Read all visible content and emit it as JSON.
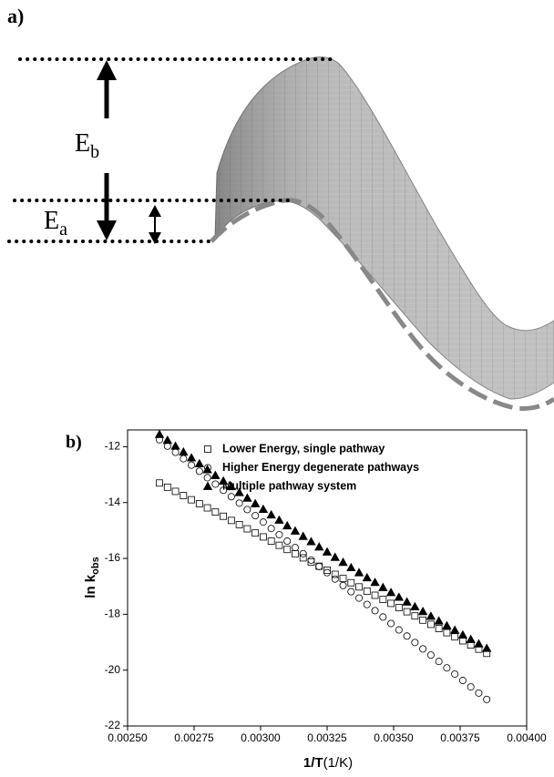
{
  "panel_a": {
    "label": "a)",
    "eb": {
      "main": "E",
      "sub": "b"
    },
    "ea": {
      "main": "E",
      "sub": "a"
    }
  },
  "panel_b_label": "b)",
  "chart_data": {
    "type": "scatter",
    "xlabel": "1/T",
    "xlabel_unit": "(1/K)",
    "ylabel": "ln k",
    "ylabel_sub": "obs",
    "xlim": [
      0.0025,
      0.004
    ],
    "xticks": [
      {
        "value": 0.0025,
        "label": "0.00250"
      },
      {
        "value": 0.00275,
        "label": "0.00275"
      },
      {
        "value": 0.003,
        "label": "0.00300"
      },
      {
        "value": 0.00325,
        "label": "0.00325"
      },
      {
        "value": 0.0035,
        "label": "0.00350"
      },
      {
        "value": 0.00375,
        "label": "0.00375"
      },
      {
        "value": 0.004,
        "label": "0.00400"
      }
    ],
    "ylim": [
      -22,
      -11.4
    ],
    "yticks": [
      -22,
      -20,
      -18,
      -16,
      -14,
      -12
    ],
    "legend": "upper left",
    "x": [
      0.00262,
      0.00265,
      0.00268,
      0.00271,
      0.00274,
      0.00277,
      0.0028,
      0.00283,
      0.00286,
      0.00289,
      0.00292,
      0.00295,
      0.00298,
      0.00301,
      0.00304,
      0.00307,
      0.0031,
      0.00313,
      0.00316,
      0.00319,
      0.00322,
      0.00325,
      0.00328,
      0.00331,
      0.00334,
      0.00337,
      0.0034,
      0.00343,
      0.00346,
      0.00349,
      0.00352,
      0.00355,
      0.00358,
      0.00361,
      0.00364,
      0.00367,
      0.0037,
      0.00373,
      0.00376,
      0.00379,
      0.00382,
      0.00385
    ],
    "series": [
      {
        "name": "Lower Energy, single pathway",
        "color": "#000000",
        "marker": "square",
        "filled": false,
        "values": [
          -13.3,
          -13.45,
          -13.6,
          -13.75,
          -13.9,
          -14.04,
          -14.19,
          -14.34,
          -14.49,
          -14.64,
          -14.79,
          -14.94,
          -15.09,
          -15.23,
          -15.38,
          -15.53,
          -15.68,
          -15.83,
          -15.98,
          -16.13,
          -16.28,
          -16.42,
          -16.57,
          -16.72,
          -16.87,
          -17.02,
          -17.17,
          -17.32,
          -17.47,
          -17.61,
          -17.76,
          -17.91,
          -18.06,
          -18.21,
          -18.36,
          -18.51,
          -18.66,
          -18.81,
          -18.95,
          -19.1,
          -19.25,
          -19.4
        ]
      },
      {
        "name": "Higher Energy degenerate pathways",
        "color": "#000000",
        "marker": "circle",
        "filled": false,
        "values": [
          -11.75,
          -11.98,
          -12.2,
          -12.43,
          -12.66,
          -12.88,
          -13.11,
          -13.34,
          -13.56,
          -13.79,
          -14.02,
          -14.25,
          -14.47,
          -14.7,
          -14.93,
          -15.15,
          -15.38,
          -15.61,
          -15.83,
          -16.06,
          -16.29,
          -16.51,
          -16.74,
          -16.97,
          -17.19,
          -17.42,
          -17.65,
          -17.87,
          -18.1,
          -18.33,
          -18.56,
          -18.78,
          -19.01,
          -19.24,
          -19.46,
          -19.69,
          -19.92,
          -20.14,
          -20.37,
          -20.6,
          -20.82,
          -21.05
        ]
      },
      {
        "name": "Multiple pathway system",
        "color": "#000000",
        "marker": "triangle",
        "filled": true,
        "values": [
          -11.56,
          -11.77,
          -11.98,
          -12.19,
          -12.4,
          -12.61,
          -12.82,
          -13.03,
          -13.23,
          -13.43,
          -13.64,
          -13.84,
          -14.04,
          -14.24,
          -14.44,
          -14.63,
          -14.83,
          -15.02,
          -15.21,
          -15.4,
          -15.59,
          -15.77,
          -15.96,
          -16.14,
          -16.33,
          -16.51,
          -16.69,
          -16.86,
          -17.04,
          -17.22,
          -17.39,
          -17.56,
          -17.73,
          -17.9,
          -18.07,
          -18.24,
          -18.41,
          -18.57,
          -18.74,
          -18.9,
          -19.06,
          -19.22
        ]
      }
    ]
  }
}
